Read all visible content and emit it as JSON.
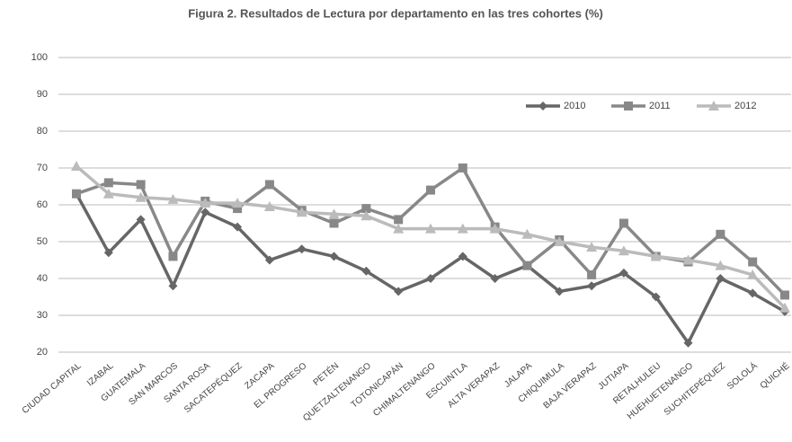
{
  "chart_data": {
    "type": "line",
    "title": "Figura 2. Resultados de Lectura por departamento en las tres cohortes (%)",
    "categories": [
      "CIUDAD CAPITAL",
      "IZABAL",
      "GUATEMALA",
      "SAN MARCOS",
      "SANTA ROSA",
      "SACATEPÉQUEZ",
      "ZACAPA",
      "EL PROGRESO",
      "PETÉN",
      "QUETZALTENANGO",
      "TOTONICAPÁN",
      "CHIMALTENANGO",
      "ESCUINTLA",
      "ALTA VERAPAZ",
      "JALAPA",
      "CHIQUIMULA",
      "BAJA VERAPAZ",
      "JUTIAPA",
      "RETALHULEU",
      "HUEHUETENANGO",
      "SUCHITEPÉQUEZ",
      "SOLOLÁ",
      "QUICHÉ"
    ],
    "series": [
      {
        "name": "2010",
        "color": "#666666",
        "marker": "diamond",
        "values": [
          63,
          47,
          56,
          38,
          58,
          54,
          45,
          48,
          46,
          42,
          36.5,
          40,
          46,
          40,
          43.5,
          36.5,
          38,
          41.5,
          35,
          22.5,
          40,
          36,
          31
        ]
      },
      {
        "name": "2011",
        "color": "#888888",
        "marker": "square",
        "values": [
          63,
          66,
          65.5,
          46,
          61,
          59,
          65.5,
          58.5,
          55,
          59,
          56,
          64,
          70,
          54,
          43.5,
          50.5,
          41,
          55,
          46,
          44.5,
          52,
          44.5,
          35.5
        ]
      },
      {
        "name": "2012",
        "color": "#bbbbbb",
        "marker": "triangle",
        "values": [
          70.5,
          63,
          62,
          61.5,
          60.5,
          60.5,
          59.5,
          58,
          57.5,
          57,
          53.5,
          53.5,
          53.5,
          53.5,
          52,
          50,
          48.5,
          47.5,
          46,
          45,
          43.5,
          41,
          32
        ]
      }
    ],
    "ylim": [
      20,
      100
    ],
    "yticks": [
      20,
      30,
      40,
      50,
      60,
      70,
      80,
      90,
      100
    ],
    "grid": true,
    "legend": "top-right"
  }
}
